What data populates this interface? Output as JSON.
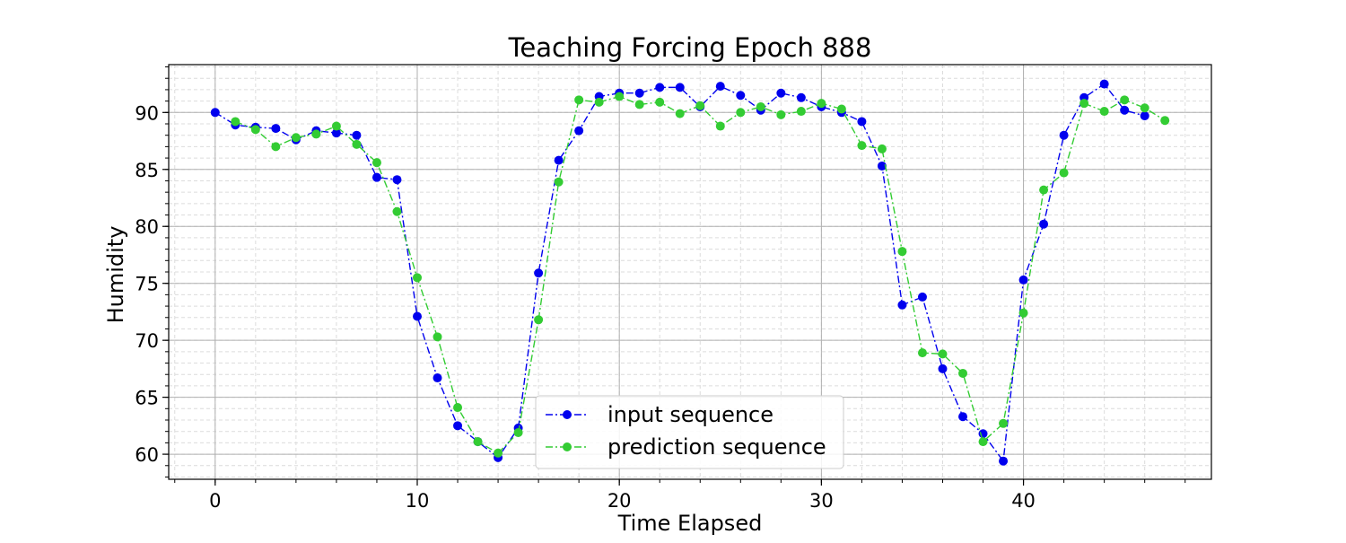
{
  "chart_data": {
    "type": "line",
    "title": "Teaching Forcing   Epoch 888",
    "xlabel": "Time Elapsed",
    "ylabel": "Humidity",
    "xlim": [
      -2.3,
      49.3
    ],
    "ylim": [
      57.8,
      94.2
    ],
    "xticks": [
      0,
      10,
      20,
      30,
      40
    ],
    "yticks": [
      60,
      65,
      70,
      75,
      80,
      85,
      90
    ],
    "grid": "major and minor",
    "legend_position": "bottom-center",
    "series": [
      {
        "name": "input sequence",
        "color": "#0000ee",
        "linestyle": "dash-dot",
        "marker": "circle",
        "x": [
          0,
          1,
          2,
          3,
          4,
          5,
          6,
          7,
          8,
          9,
          10,
          11,
          12,
          13,
          14,
          15,
          16,
          17,
          18,
          19,
          20,
          21,
          22,
          23,
          24,
          25,
          26,
          27,
          28,
          29,
          30,
          31,
          32,
          33,
          34,
          35,
          36,
          37,
          38,
          39,
          40,
          41,
          42,
          43,
          44,
          45,
          46
        ],
        "values": [
          90.0,
          88.9,
          88.7,
          88.6,
          87.6,
          88.4,
          88.2,
          88.0,
          84.3,
          84.1,
          72.1,
          66.7,
          62.5,
          61.1,
          59.7,
          62.3,
          75.9,
          85.8,
          88.4,
          91.4,
          91.7,
          91.7,
          92.2,
          92.2,
          90.5,
          92.3,
          91.5,
          90.2,
          91.7,
          91.3,
          90.5,
          90.0,
          89.2,
          85.3,
          73.1,
          73.8,
          67.5,
          63.3,
          61.8,
          59.4,
          75.3,
          80.2,
          88.0,
          91.3,
          92.5,
          90.2,
          89.7
        ]
      },
      {
        "name": "prediction sequence",
        "color": "#33cc33",
        "linestyle": "dash-dot",
        "marker": "circle",
        "x": [
          1,
          2,
          3,
          4,
          5,
          6,
          7,
          8,
          9,
          10,
          11,
          12,
          13,
          14,
          15,
          16,
          17,
          18,
          19,
          20,
          21,
          22,
          23,
          24,
          25,
          26,
          27,
          28,
          29,
          30,
          31,
          32,
          33,
          34,
          35,
          36,
          37,
          38,
          39,
          40,
          41,
          42,
          43,
          44,
          45,
          46,
          47
        ],
        "values": [
          89.2,
          88.5,
          87.0,
          87.8,
          88.1,
          88.8,
          87.2,
          85.6,
          81.3,
          75.5,
          70.3,
          64.1,
          61.1,
          60.1,
          61.9,
          71.8,
          83.9,
          91.1,
          90.9,
          91.4,
          90.7,
          90.9,
          89.9,
          90.6,
          88.8,
          90.0,
          90.5,
          89.8,
          90.1,
          90.8,
          90.3,
          87.1,
          86.8,
          77.8,
          68.9,
          68.8,
          67.1,
          61.1,
          62.7,
          72.4,
          83.2,
          84.7,
          90.8,
          90.1,
          91.1,
          90.4,
          89.3
        ]
      }
    ]
  }
}
